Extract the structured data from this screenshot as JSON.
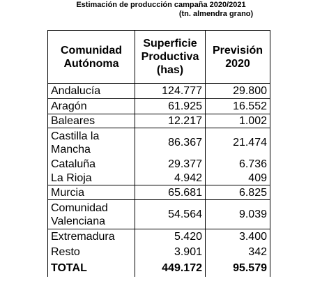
{
  "header": {
    "title": "Estimación de producción campaña 2020/2021",
    "subtitle": "(tn. almendra grano)"
  },
  "table": {
    "columns": [
      "Comunidad Autónoma",
      "Superficie Productiva (has)",
      "Previsión 2020"
    ],
    "rows": [
      [
        "Andalucía",
        "124.777",
        "29.800"
      ],
      [
        "Aragón",
        "61.925",
        "16.552"
      ],
      [
        "Baleares",
        "12.217",
        "1.002"
      ],
      [
        "Castilla la Mancha",
        "86.367",
        "21.474"
      ],
      [
        "Cataluña",
        "29.377",
        "6.736"
      ],
      [
        "La Rioja",
        "4.942",
        "409"
      ],
      [
        "Murcia",
        "65.681",
        "6.825"
      ],
      [
        "Comunidad Valenciana",
        "54.564",
        "9.039"
      ],
      [
        "Extremadura",
        "5.420",
        "3.400"
      ],
      [
        "Resto",
        "3.901",
        "342"
      ]
    ],
    "total": [
      "TOTAL",
      "449.172",
      "95.579"
    ]
  }
}
